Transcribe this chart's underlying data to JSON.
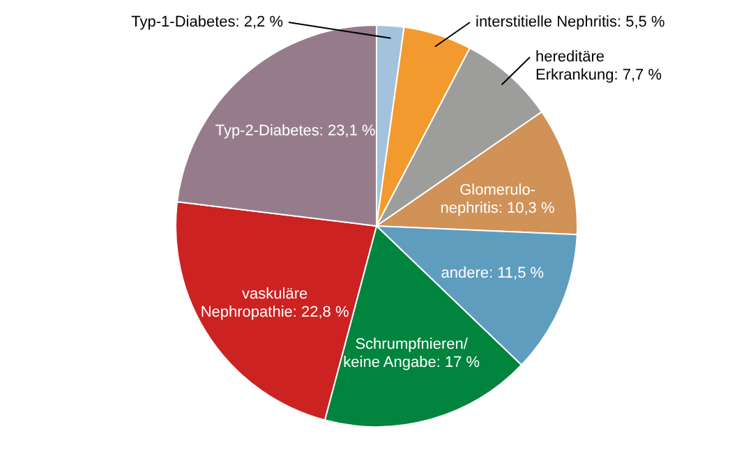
{
  "chart_data": {
    "type": "pie",
    "categories": [
      "Typ-1-Diabetes",
      "interstitielle Nephritis",
      "hereditäre\nErkrankung",
      "Glomerulo-\nnephritis",
      "andere",
      "Schrumpfnieren/\nkeine Angabe",
      "vaskuläre\nNephropathie",
      "Typ-2-Diabetes"
    ],
    "values": [
      2.2,
      5.5,
      7.7,
      10.3,
      11.5,
      17,
      22.8,
      23.1
    ],
    "value_labels": [
      "2,2 %",
      "5,5 %",
      "7,7 %",
      "10,3 %",
      "11,5 %",
      "17 %",
      "22,8 %",
      "23,1 %"
    ],
    "colors": [
      "#a3c3dc",
      "#f39a2e",
      "#9d9d9c",
      "#d09257",
      "#5f9dbf",
      "#00843e",
      "#cc2222",
      "#967c8a"
    ]
  }
}
